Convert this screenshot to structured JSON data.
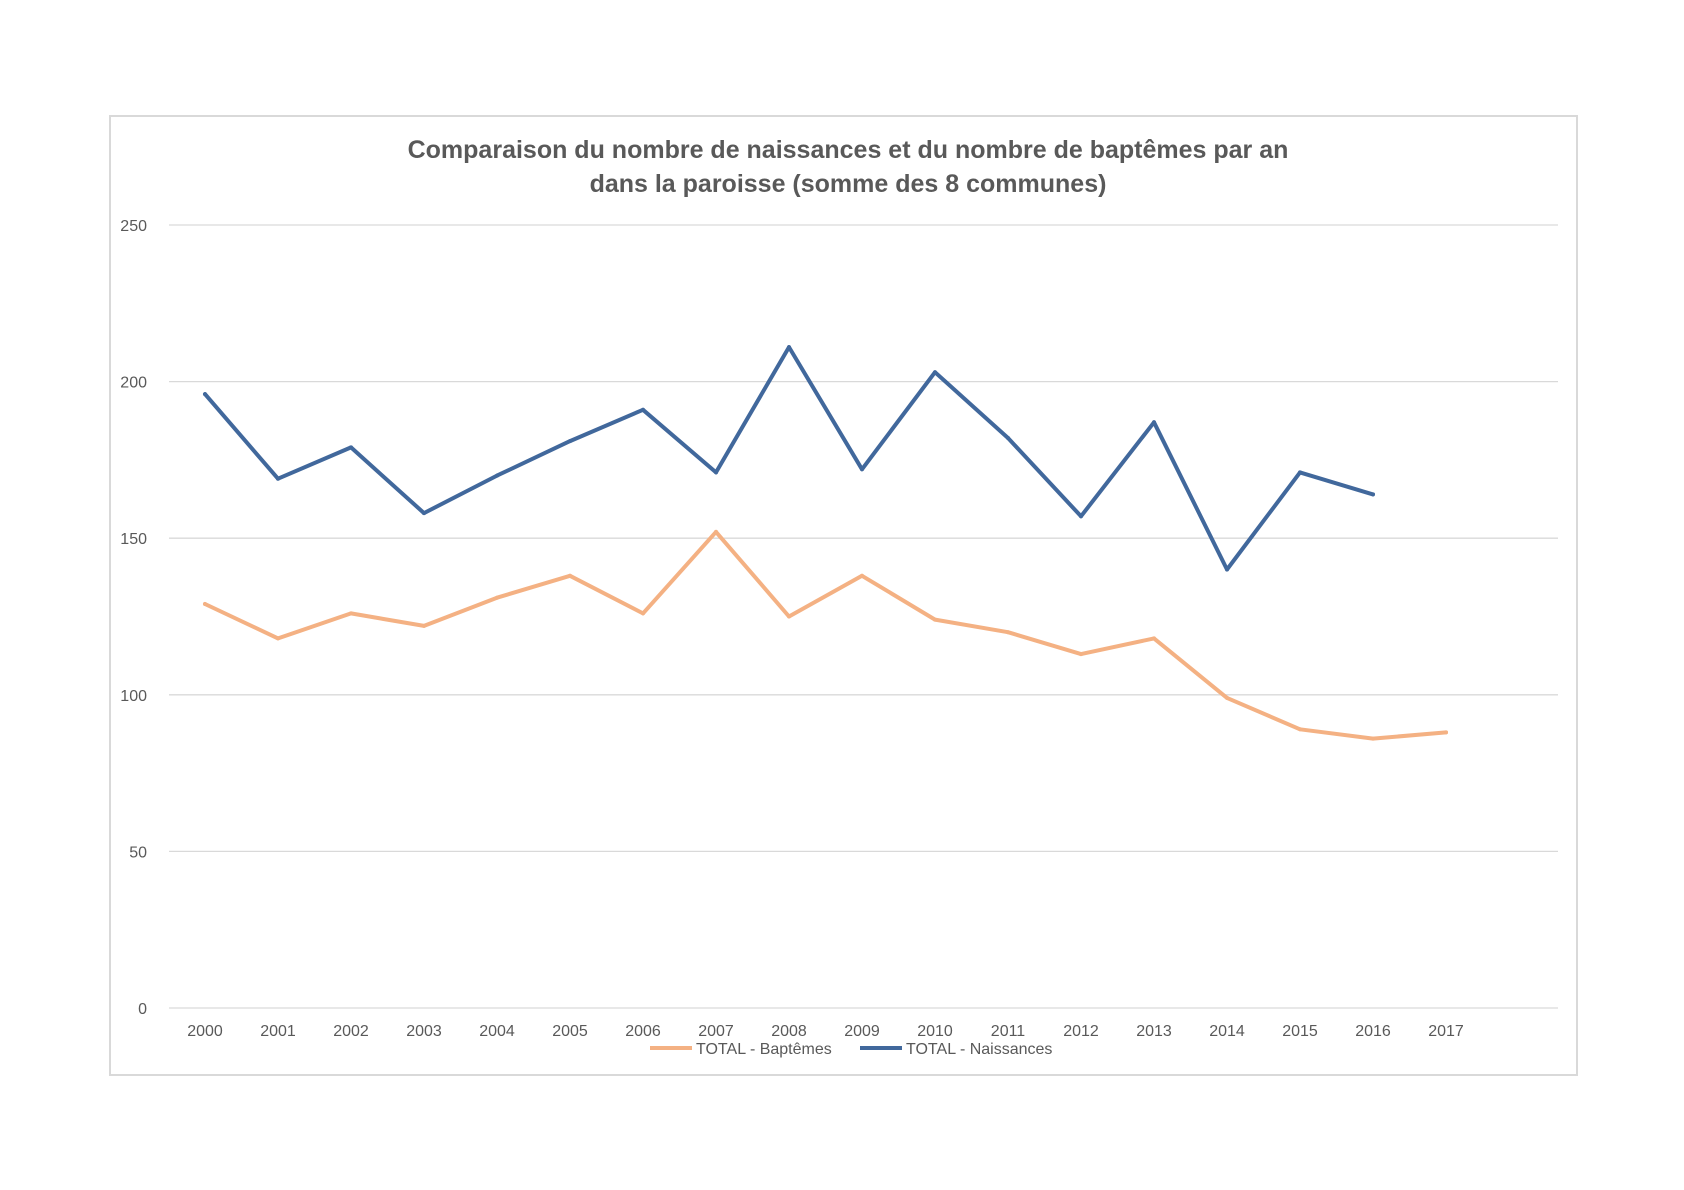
{
  "chart_data": {
    "type": "line",
    "title": "Comparaison du nombre de naissances et du nombre de baptêmes par an dans la paroisse (somme des 8 communes)",
    "title_lines": [
      "Comparaison du nombre de naissances et du nombre de baptêmes par an",
      "dans la paroisse (somme des 8 communes)"
    ],
    "xlabel": "",
    "ylabel": "",
    "categories": [
      "2000",
      "2001",
      "2002",
      "2003",
      "2004",
      "2005",
      "2006",
      "2007",
      "2008",
      "2009",
      "2010",
      "2011",
      "2012",
      "2013",
      "2014",
      "2015",
      "2016",
      "2017"
    ],
    "ylim": [
      0,
      250
    ],
    "yticks": [
      0,
      50,
      100,
      150,
      200,
      250
    ],
    "grid": true,
    "legend_position": "bottom",
    "series": [
      {
        "name": "TOTAL - Baptêmes",
        "color": "#f4b183",
        "values": [
          129,
          118,
          126,
          122,
          131,
          138,
          126,
          152,
          125,
          138,
          124,
          120,
          113,
          118,
          99,
          89,
          86,
          88
        ]
      },
      {
        "name": "TOTAL - Naissances",
        "color": "#41689c",
        "values": [
          196,
          169,
          179,
          158,
          170,
          181,
          191,
          171,
          211,
          172,
          203,
          182,
          157,
          187,
          140,
          171,
          164,
          null
        ]
      }
    ]
  }
}
